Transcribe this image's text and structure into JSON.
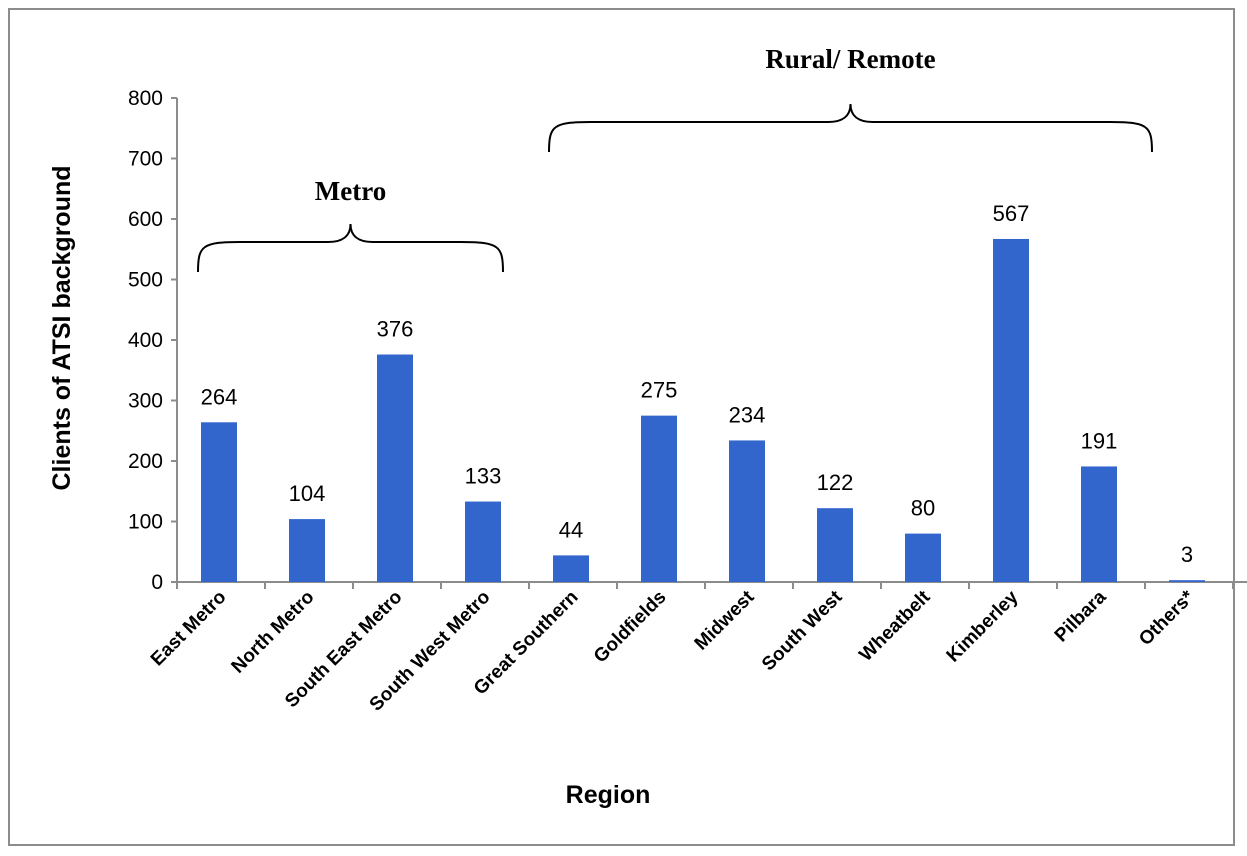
{
  "chart_data": {
    "type": "bar",
    "xlabel": "Region",
    "ylabel": "Clients of ATSI background",
    "ylim": [
      0,
      800
    ],
    "yticks": [
      0,
      100,
      200,
      300,
      400,
      500,
      600,
      700,
      800
    ],
    "grid": false,
    "categories": [
      "East Metro",
      "North Metro",
      "South East Metro",
      "South West Metro",
      "Great Southern",
      "Goldfields",
      "Midwest",
      "South West",
      "Wheatbelt",
      "Kimberley",
      "Pilbara",
      "Others*"
    ],
    "values": [
      264,
      104,
      376,
      133,
      44,
      275,
      234,
      122,
      80,
      567,
      191,
      3
    ],
    "data_labels": [
      "264",
      "104",
      "376",
      "133",
      "44",
      "275",
      "234",
      "122",
      "80",
      "567",
      "191",
      "3"
    ],
    "bar_color": "#3366CC",
    "groups": [
      {
        "label": "Metro",
        "from": 0,
        "to": 3
      },
      {
        "label": "Rural/ Remote",
        "from": 4,
        "to": 11
      }
    ]
  }
}
